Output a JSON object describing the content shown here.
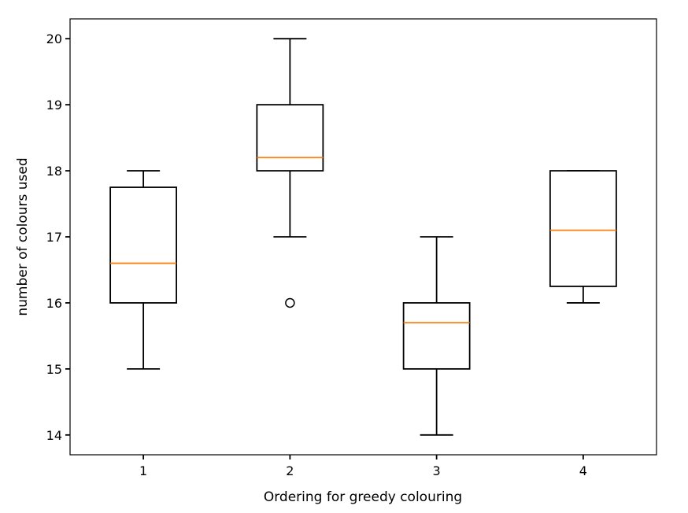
{
  "chart_data": {
    "type": "box",
    "xlabel": "Ordering for greedy colouring",
    "ylabel": "number of colours used",
    "ylim": [
      13.7,
      20.3
    ],
    "yticks": [
      14,
      15,
      16,
      17,
      18,
      19,
      20
    ],
    "xlim": [
      0.5,
      4.5
    ],
    "categories": [
      "1",
      "2",
      "3",
      "4"
    ],
    "boxes": [
      {
        "category": "1",
        "whisker_low": 15,
        "q1": 16,
        "median": 16.6,
        "q3": 17.75,
        "whisker_high": 18,
        "outliers": []
      },
      {
        "category": "2",
        "whisker_low": 17,
        "q1": 18,
        "median": 18.2,
        "q3": 19,
        "whisker_high": 20,
        "outliers": [
          16
        ]
      },
      {
        "category": "3",
        "whisker_low": 14,
        "q1": 15,
        "median": 15.7,
        "q3": 16,
        "whisker_high": 17,
        "outliers": []
      },
      {
        "category": "4",
        "whisker_low": 16,
        "q1": 16.25,
        "median": 17.1,
        "q3": 18,
        "whisker_high": 18,
        "outliers": []
      }
    ],
    "colors": {
      "box": "#000000",
      "median": "#ff7f0e",
      "background": "#ffffff"
    },
    "grid": false
  }
}
